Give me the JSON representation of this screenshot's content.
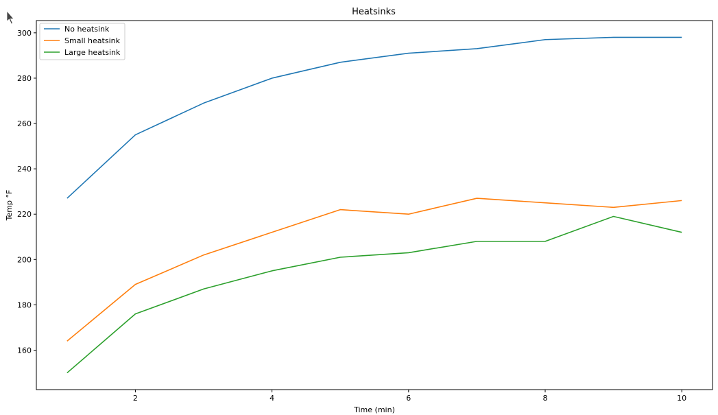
{
  "chart_data": {
    "type": "line",
    "title": "Heatsinks",
    "xlabel": "Time (min)",
    "ylabel": "Temp °F",
    "x": [
      1,
      2,
      3,
      4,
      5,
      6,
      7,
      8,
      9,
      10
    ],
    "xlim": [
      0.55,
      10.45
    ],
    "ylim": [
      142.6,
      305.4
    ],
    "x_ticks": [
      2,
      4,
      6,
      8,
      10
    ],
    "y_ticks": [
      160,
      180,
      200,
      220,
      240,
      260,
      280,
      300
    ],
    "grid": false,
    "legend_position": "upper-left",
    "series": [
      {
        "name": "No heatsink",
        "color": "#1f77b4",
        "values": [
          227,
          255,
          269,
          280,
          287,
          291,
          293,
          297,
          298,
          298
        ]
      },
      {
        "name": "Small heatsink",
        "color": "#ff7f0e",
        "values": [
          164,
          189,
          202,
          212,
          222,
          220,
          227,
          225,
          223,
          226
        ]
      },
      {
        "name": "Large heatsink",
        "color": "#2ca02c",
        "values": [
          150,
          176,
          187,
          195,
          201,
          203,
          208,
          208,
          219,
          212
        ]
      }
    ]
  },
  "cursor_icon": "mouse-pointer-icon"
}
